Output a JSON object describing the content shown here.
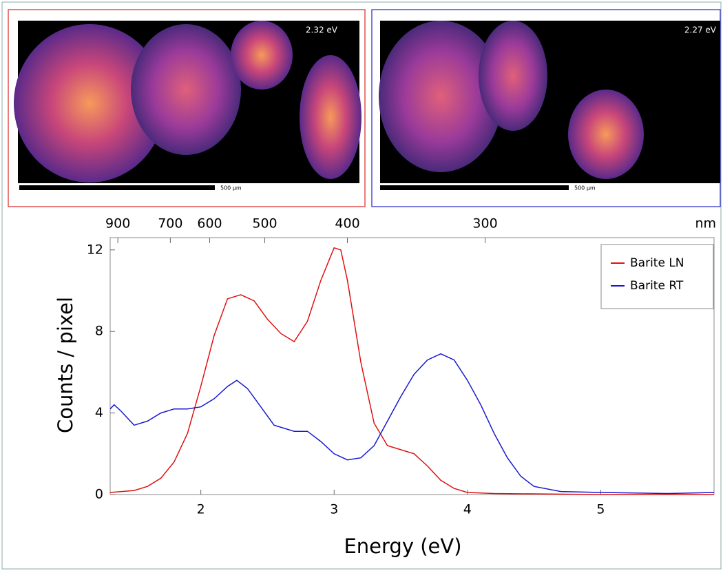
{
  "panels": [
    {
      "label": "2.32 eV",
      "scale": "500 µm",
      "border": "#e05050"
    },
    {
      "label": "2.27 eV",
      "scale": "500 µm",
      "border": "#5050d0"
    }
  ],
  "chart_data": {
    "type": "line",
    "xlabel": "Energy (eV)",
    "ylabel": "Counts / pixel",
    "xlim": [
      1.32,
      5.85
    ],
    "ylim": [
      0,
      12.6
    ],
    "xticks": [
      2,
      3,
      4,
      5
    ],
    "yticks": [
      0,
      4,
      8,
      12
    ],
    "x2ticks": [
      900,
      700,
      600,
      500,
      400,
      300
    ],
    "x2label": "nm",
    "legend": "upper right",
    "series": [
      {
        "name": "Barite LN",
        "color": "#e01010",
        "x": [
          1.32,
          1.5,
          1.6,
          1.7,
          1.8,
          1.9,
          2.0,
          2.1,
          2.2,
          2.3,
          2.4,
          2.5,
          2.6,
          2.7,
          2.8,
          2.9,
          3.0,
          3.05,
          3.1,
          3.2,
          3.3,
          3.4,
          3.5,
          3.6,
          3.7,
          3.8,
          3.9,
          4.0,
          4.2,
          5.0,
          5.85
        ],
        "values": [
          0.1,
          0.2,
          0.4,
          0.8,
          1.6,
          3.0,
          5.3,
          7.8,
          9.6,
          9.8,
          9.5,
          8.6,
          7.9,
          7.5,
          8.5,
          10.5,
          12.1,
          12.0,
          10.5,
          6.5,
          3.5,
          2.4,
          2.2,
          2.0,
          1.4,
          0.7,
          0.3,
          0.1,
          0.05,
          0,
          0
        ]
      },
      {
        "name": "Barite RT",
        "color": "#1818d0",
        "x": [
          1.32,
          1.35,
          1.4,
          1.5,
          1.6,
          1.7,
          1.8,
          1.9,
          2.0,
          2.1,
          2.2,
          2.27,
          2.35,
          2.45,
          2.55,
          2.7,
          2.8,
          2.9,
          3.0,
          3.1,
          3.2,
          3.3,
          3.4,
          3.5,
          3.6,
          3.7,
          3.8,
          3.9,
          4.0,
          4.1,
          4.2,
          4.3,
          4.4,
          4.5,
          4.7,
          5.0,
          5.5,
          5.85
        ],
        "values": [
          4.2,
          4.4,
          4.1,
          3.4,
          3.6,
          4.0,
          4.2,
          4.2,
          4.3,
          4.7,
          5.3,
          5.6,
          5.2,
          4.3,
          3.4,
          3.1,
          3.1,
          2.6,
          2.0,
          1.7,
          1.8,
          2.4,
          3.6,
          4.8,
          5.9,
          6.6,
          6.9,
          6.6,
          5.6,
          4.4,
          3.0,
          1.8,
          0.9,
          0.4,
          0.15,
          0.1,
          0.05,
          0.1
        ]
      }
    ]
  }
}
